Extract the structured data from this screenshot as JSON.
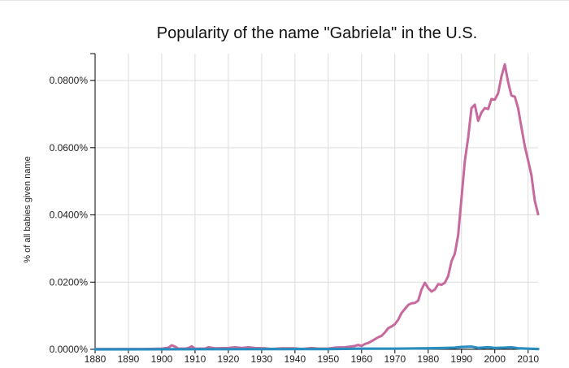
{
  "chart_data": {
    "type": "line",
    "title": "Popularity of the name \"Gabriela\" in the U.S.",
    "xlabel": "",
    "ylabel": "% of all babies given name",
    "xlim": [
      1880,
      2013
    ],
    "ylim": [
      0,
      0.088
    ],
    "x_ticks": [
      1880,
      1890,
      1900,
      1910,
      1920,
      1930,
      1940,
      1950,
      1960,
      1970,
      1980,
      1990,
      2000,
      2010
    ],
    "x_tick_labels": [
      "1880",
      "1890",
      "1900",
      "1910",
      "1920",
      "1930",
      "1940",
      "1950",
      "1960",
      "1970",
      "1980",
      "1990",
      "2000",
      "2010"
    ],
    "y_ticks": [
      0,
      0.02,
      0.04,
      0.06,
      0.08
    ],
    "y_tick_labels": [
      "0.0000%",
      "0.0200%",
      "0.0400%",
      "0.0600%",
      "0.0800%"
    ],
    "grid": true,
    "series": [
      {
        "color": "#c8699d",
        "points": [
          [
            1880,
            0.0001
          ],
          [
            1895,
            0.0001
          ],
          [
            1900,
            0.0002
          ],
          [
            1902,
            0.0005
          ],
          [
            1903,
            0.0012
          ],
          [
            1904,
            0.0008
          ],
          [
            1905,
            0.0002
          ],
          [
            1907,
            0.0002
          ],
          [
            1908,
            0.0004
          ],
          [
            1909,
            0.0009
          ],
          [
            1910,
            0.0002
          ],
          [
            1913,
            0.0002
          ],
          [
            1914,
            0.0006
          ],
          [
            1916,
            0.0003
          ],
          [
            1920,
            0.0004
          ],
          [
            1922,
            0.0006
          ],
          [
            1924,
            0.0004
          ],
          [
            1926,
            0.0006
          ],
          [
            1928,
            0.0004
          ],
          [
            1931,
            0.0003
          ],
          [
            1933,
            0.0001
          ],
          [
            1936,
            0.0003
          ],
          [
            1940,
            0.0003
          ],
          [
            1942,
            0.0001
          ],
          [
            1945,
            0.0004
          ],
          [
            1947,
            0.0002
          ],
          [
            1950,
            0.0002
          ],
          [
            1952,
            0.0005
          ],
          [
            1955,
            0.0006
          ],
          [
            1958,
            0.001
          ],
          [
            1959,
            0.0013
          ],
          [
            1960,
            0.001
          ],
          [
            1961,
            0.0016
          ],
          [
            1962,
            0.0019
          ],
          [
            1963,
            0.0024
          ],
          [
            1964,
            0.003
          ],
          [
            1965,
            0.0036
          ],
          [
            1966,
            0.004
          ],
          [
            1967,
            0.005
          ],
          [
            1968,
            0.0063
          ],
          [
            1969,
            0.0068
          ],
          [
            1970,
            0.0075
          ],
          [
            1971,
            0.0088
          ],
          [
            1972,
            0.0108
          ],
          [
            1973,
            0.012
          ],
          [
            1974,
            0.0132
          ],
          [
            1975,
            0.0137
          ],
          [
            1976,
            0.0138
          ],
          [
            1977,
            0.0145
          ],
          [
            1978,
            0.0178
          ],
          [
            1979,
            0.0198
          ],
          [
            1980,
            0.0182
          ],
          [
            1981,
            0.0172
          ],
          [
            1982,
            0.0178
          ],
          [
            1983,
            0.0194
          ],
          [
            1984,
            0.0192
          ],
          [
            1985,
            0.0198
          ],
          [
            1986,
            0.0218
          ],
          [
            1987,
            0.0262
          ],
          [
            1988,
            0.0285
          ],
          [
            1989,
            0.034
          ],
          [
            1990,
            0.045
          ],
          [
            1991,
            0.056
          ],
          [
            1992,
            0.063
          ],
          [
            1993,
            0.0718
          ],
          [
            1994,
            0.0728
          ],
          [
            1995,
            0.068
          ],
          [
            1996,
            0.0705
          ],
          [
            1997,
            0.0718
          ],
          [
            1998,
            0.0715
          ],
          [
            1999,
            0.0745
          ],
          [
            2000,
            0.0743
          ],
          [
            2001,
            0.0762
          ],
          [
            2002,
            0.0812
          ],
          [
            2003,
            0.0848
          ],
          [
            2004,
            0.0795
          ],
          [
            2005,
            0.0755
          ],
          [
            2006,
            0.0752
          ],
          [
            2007,
            0.0718
          ],
          [
            2008,
            0.066
          ],
          [
            2009,
            0.0605
          ],
          [
            2010,
            0.0562
          ],
          [
            2011,
            0.0518
          ],
          [
            2012,
            0.0442
          ],
          [
            2013,
            0.0402
          ]
        ]
      },
      {
        "color": "#2b8cbe",
        "points": [
          [
            1880,
            0.0
          ],
          [
            1950,
            0.0001
          ],
          [
            1960,
            0.0002
          ],
          [
            1970,
            0.0002
          ],
          [
            1980,
            0.0003
          ],
          [
            1985,
            0.0004
          ],
          [
            1988,
            0.0005
          ],
          [
            1990,
            0.0007
          ],
          [
            1993,
            0.0008
          ],
          [
            1995,
            0.0004
          ],
          [
            1998,
            0.0006
          ],
          [
            2000,
            0.0004
          ],
          [
            2003,
            0.0005
          ],
          [
            2005,
            0.0006
          ],
          [
            2007,
            0.0003
          ],
          [
            2010,
            0.0002
          ],
          [
            2013,
            0.0001
          ]
        ]
      }
    ]
  }
}
